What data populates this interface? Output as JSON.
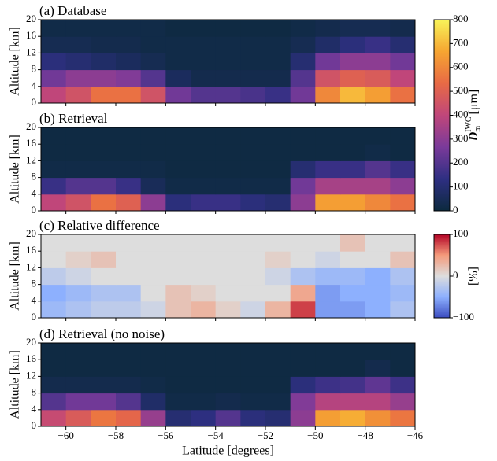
{
  "chart_data": [
    {
      "type": "heatmap",
      "title": "(a) Database",
      "y_label": "Altitude [km]",
      "x": [
        -60.5,
        -59.5,
        -58.5,
        -57.5,
        -56.5,
        -55.5,
        -54.5,
        -53.5,
        -52.5,
        -51.5,
        -50.5,
        -49.5,
        -48.5,
        -47.5,
        -46.5
      ],
      "y": [
        2,
        6,
        10,
        14,
        18
      ],
      "z": [
        [
          400,
          450,
          550,
          550,
          450,
          250,
          200,
          200,
          180,
          150,
          250,
          600,
          700,
          650,
          550
        ],
        [
          250,
          300,
          300,
          280,
          200,
          60,
          30,
          30,
          30,
          30,
          200,
          450,
          500,
          480,
          400
        ],
        [
          120,
          100,
          80,
          60,
          40,
          20,
          20,
          20,
          20,
          20,
          100,
          250,
          300,
          300,
          250
        ],
        [
          40,
          40,
          30,
          30,
          20,
          20,
          20,
          20,
          20,
          20,
          40,
          80,
          120,
          150,
          100
        ],
        [
          20,
          20,
          20,
          20,
          20,
          10,
          10,
          10,
          10,
          10,
          20,
          30,
          40,
          40,
          30
        ]
      ],
      "zlim": [
        0,
        800
      ],
      "colormap": [
        "#0c2a3e",
        "#2e2f82",
        "#7a3a9a",
        "#c0467a",
        "#e86a45",
        "#f6a531",
        "#f8f45a"
      ],
      "xlim": [
        -61,
        -46
      ],
      "xticks": [
        -60,
        -58,
        -56,
        -54,
        -52,
        -50,
        -48,
        -46
      ],
      "ylim": [
        0,
        20
      ],
      "yticks": [
        0,
        4,
        8,
        12,
        16,
        20
      ],
      "colorbar": {
        "ticks": [
          0,
          100,
          200,
          300,
          400,
          500,
          600,
          700,
          800
        ],
        "label": {
          "base": "D",
          "sub": "m",
          "sup": "IWC",
          "unit": "[μm]"
        }
      }
    },
    {
      "type": "heatmap",
      "title": "(b) Retrieval",
      "y_label": "Altitude [km]",
      "x": [
        -60.5,
        -59.5,
        -58.5,
        -57.5,
        -56.5,
        -55.5,
        -54.5,
        -53.5,
        -52.5,
        -51.5,
        -50.5,
        -49.5,
        -48.5,
        -47.5,
        -46.5
      ],
      "y": [
        2,
        6,
        10,
        14,
        18
      ],
      "z": [
        [
          400,
          450,
          550,
          500,
          300,
          120,
          150,
          150,
          120,
          100,
          300,
          650,
          650,
          600,
          550
        ],
        [
          150,
          200,
          200,
          150,
          50,
          20,
          20,
          20,
          20,
          20,
          250,
          350,
          350,
          350,
          300
        ],
        [
          20,
          20,
          20,
          20,
          20,
          10,
          10,
          10,
          10,
          10,
          100,
          150,
          150,
          200,
          150
        ],
        [
          10,
          10,
          10,
          10,
          10,
          10,
          10,
          10,
          10,
          10,
          10,
          10,
          10,
          20,
          10
        ],
        [
          10,
          10,
          10,
          10,
          10,
          10,
          10,
          10,
          10,
          10,
          10,
          10,
          10,
          10,
          10
        ]
      ],
      "zlim": [
        0,
        800
      ],
      "colormap": [
        "#0c2a3e",
        "#2e2f82",
        "#7a3a9a",
        "#c0467a",
        "#e86a45",
        "#f6a531",
        "#f8f45a"
      ],
      "xlim": [
        -61,
        -46
      ],
      "xticks": [
        -60,
        -58,
        -56,
        -54,
        -52,
        -50,
        -48,
        -46
      ],
      "ylim": [
        0,
        20
      ],
      "yticks": [
        0,
        4,
        8,
        12,
        16,
        20
      ]
    },
    {
      "type": "heatmap",
      "title": "(c) Relative difference",
      "y_label": "Altitude [km]",
      "x": [
        -60.5,
        -59.5,
        -58.5,
        -57.5,
        -56.5,
        -55.5,
        -54.5,
        -53.5,
        -52.5,
        -51.5,
        -50.5,
        -49.5,
        -48.5,
        -47.5,
        -46.5
      ],
      "y": [
        2,
        6,
        10,
        14,
        18
      ],
      "z": [
        [
          -40,
          -30,
          -20,
          -20,
          -10,
          20,
          30,
          10,
          -10,
          30,
          80,
          -60,
          -60,
          -50,
          -30
        ],
        [
          -50,
          -40,
          -30,
          -30,
          0,
          20,
          10,
          0,
          0,
          0,
          40,
          -60,
          -50,
          -50,
          -40
        ],
        [
          -20,
          -10,
          0,
          0,
          0,
          0,
          0,
          0,
          0,
          -10,
          -30,
          -40,
          -40,
          -50,
          -30
        ],
        [
          0,
          10,
          20,
          0,
          0,
          0,
          0,
          0,
          0,
          10,
          0,
          -10,
          0,
          0,
          20
        ],
        [
          0,
          0,
          0,
          0,
          0,
          0,
          0,
          0,
          0,
          0,
          0,
          0,
          20,
          0,
          0
        ]
      ],
      "zlim": [
        -100,
        100
      ],
      "colormap": [
        "#3b4cc0",
        "#8db0fe",
        "#dddddd",
        "#f49a7b",
        "#b40426"
      ],
      "xlim": [
        -61,
        -46
      ],
      "xticks": [
        -60,
        -58,
        -56,
        -54,
        -52,
        -50,
        -48,
        -46
      ],
      "ylim": [
        0,
        20
      ],
      "yticks": [
        0,
        4,
        8,
        12,
        16,
        20
      ],
      "colorbar": {
        "ticks": [
          {
            "value": -100,
            "label": "−100"
          },
          0,
          100
        ],
        "label": "[%]"
      }
    },
    {
      "type": "heatmap",
      "title": "(d) Retrieval (no noise)",
      "y_label": "Altitude [km]",
      "x_label": "Latitude [degrees]",
      "x": [
        -60.5,
        -59.5,
        -58.5,
        -57.5,
        -56.5,
        -55.5,
        -54.5,
        -53.5,
        -52.5,
        -51.5,
        -50.5,
        -49.5,
        -48.5,
        -47.5,
        -46.5
      ],
      "y": [
        2,
        6,
        10,
        14,
        18
      ],
      "z": [
        [
          420,
          480,
          560,
          520,
          320,
          100,
          130,
          200,
          120,
          100,
          300,
          650,
          680,
          620,
          560
        ],
        [
          200,
          250,
          250,
          200,
          80,
          20,
          20,
          30,
          20,
          20,
          280,
          380,
          380,
          380,
          320
        ],
        [
          30,
          30,
          30,
          30,
          20,
          10,
          10,
          10,
          10,
          10,
          120,
          160,
          170,
          220,
          160
        ],
        [
          10,
          10,
          10,
          10,
          10,
          10,
          10,
          10,
          10,
          10,
          10,
          10,
          10,
          30,
          10
        ],
        [
          10,
          10,
          10,
          10,
          10,
          10,
          10,
          10,
          10,
          10,
          10,
          10,
          10,
          10,
          10
        ]
      ],
      "zlim": [
        0,
        800
      ],
      "colormap": [
        "#0c2a3e",
        "#2e2f82",
        "#7a3a9a",
        "#c0467a",
        "#e86a45",
        "#f6a531",
        "#f8f45a"
      ],
      "xlim": [
        -61,
        -46
      ],
      "xticks": [
        {
          "value": -60,
          "label": "−60"
        },
        {
          "value": -58,
          "label": "−58"
        },
        {
          "value": -56,
          "label": "−56"
        },
        {
          "value": -54,
          "label": "−54"
        },
        {
          "value": -52,
          "label": "−52"
        },
        {
          "value": -50,
          "label": "−50"
        },
        {
          "value": -48,
          "label": "−48"
        },
        {
          "value": -46,
          "label": "−46"
        }
      ],
      "ylim": [
        0,
        20
      ],
      "yticks": [
        0,
        4,
        8,
        12,
        16,
        20
      ]
    }
  ]
}
